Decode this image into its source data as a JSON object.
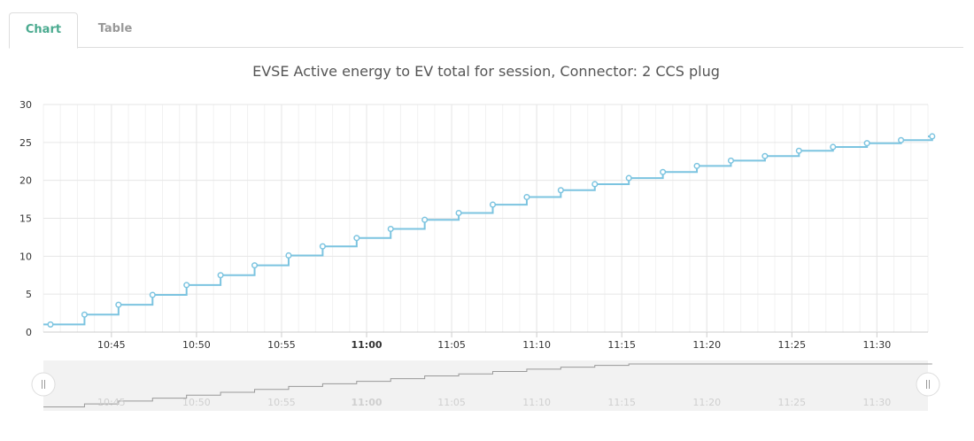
{
  "tabs": [
    {
      "label": "Chart",
      "active": true
    },
    {
      "label": "Table",
      "active": false
    }
  ],
  "chart_data": {
    "type": "line",
    "step": true,
    "title": "EVSE Active energy to EV total for session, Connector: 2 CCS plug",
    "xlabel": "",
    "ylabel": "",
    "ylim": [
      0,
      30
    ],
    "yticks": [
      0,
      5,
      10,
      15,
      20,
      25,
      30
    ],
    "xlim": [
      "10:41",
      "11:33"
    ],
    "xticks": [
      "10:45",
      "10:50",
      "10:55",
      "11:00",
      "11:05",
      "11:10",
      "11:15",
      "11:20",
      "11:25",
      "11:30"
    ],
    "bold_xtick": "11:00",
    "grid": true,
    "series": [
      {
        "color": "#7cc4e0",
        "marker": "circle-hollow",
        "x": [
          "10:41:25",
          "10:43:25",
          "10:45:25",
          "10:47:25",
          "10:49:25",
          "10:51:25",
          "10:53:25",
          "10:55:25",
          "10:57:25",
          "10:59:25",
          "11:01:25",
          "11:03:25",
          "11:05:25",
          "11:07:25",
          "11:09:25",
          "11:11:25",
          "11:13:25",
          "11:15:25",
          "11:17:25",
          "11:19:25",
          "11:21:25",
          "11:23:25",
          "11:25:25",
          "11:27:25",
          "11:29:25",
          "11:31:25",
          "11:33:15"
        ],
        "values": [
          1.0,
          2.3,
          3.6,
          4.9,
          6.2,
          7.5,
          8.8,
          10.1,
          11.3,
          12.4,
          13.6,
          14.8,
          15.7,
          16.8,
          17.8,
          18.7,
          19.5,
          20.3,
          21.1,
          21.9,
          22.6,
          23.2,
          23.9,
          24.4,
          24.9,
          25.3,
          25.8
        ]
      }
    ],
    "navigator": {
      "xticks": [
        "10:45",
        "10:50",
        "10:55",
        "11:00",
        "11:05",
        "11:10",
        "11:15",
        "11:20",
        "11:25",
        "11:30"
      ],
      "handles": [
        "left",
        "right"
      ]
    }
  }
}
